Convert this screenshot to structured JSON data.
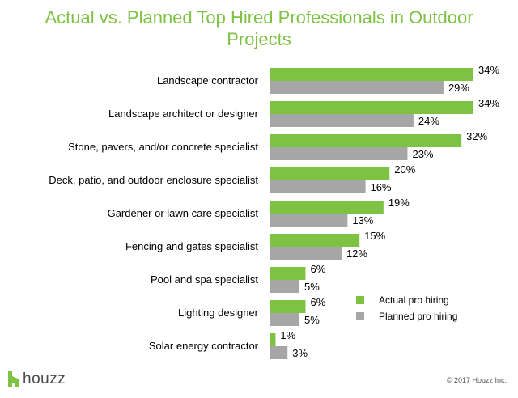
{
  "title_lines": [
    "Actual vs. Planned Top Hired Professionals in Outdoor",
    "Projects"
  ],
  "colors": {
    "actual": "#7dc242",
    "planned": "#a6a6a6",
    "title": "#7dc242",
    "logo": "#7dc242"
  },
  "chart_data": {
    "type": "bar",
    "orientation": "horizontal",
    "title": "Actual vs. Planned Top Hired Professionals in Outdoor Projects",
    "categories": [
      "Landscape contractor",
      "Landscape architect or designer",
      "Stone, pavers, and/or concrete specialist",
      "Deck, patio, and outdoor enclosure specialist",
      "Gardener or lawn care specialist",
      "Fencing and gates specialist",
      "Pool and spa specialist",
      "Lighting designer",
      "Solar energy contractor"
    ],
    "series": [
      {
        "name": "Actual pro hiring",
        "values": [
          34,
          34,
          32,
          20,
          19,
          15,
          6,
          6,
          1
        ],
        "labels": [
          "34%",
          "34%",
          "32%",
          "20%",
          "19%",
          "15%",
          "6%",
          "6%",
          "1%"
        ]
      },
      {
        "name": "Planned pro hiring",
        "values": [
          29,
          24,
          23,
          16,
          13,
          12,
          5,
          5,
          3
        ],
        "labels": [
          "29%",
          "24%",
          "23%",
          "16%",
          "13%",
          "12%",
          "5%",
          "5%",
          "3%"
        ]
      }
    ],
    "xlim": [
      0,
      34
    ],
    "grid": false,
    "legend": "bottom-right"
  },
  "footer": {
    "logo_text": "houzz",
    "logo_icon": "houzz-logo-icon",
    "copyright": "© 2017 Houzz Inc."
  }
}
